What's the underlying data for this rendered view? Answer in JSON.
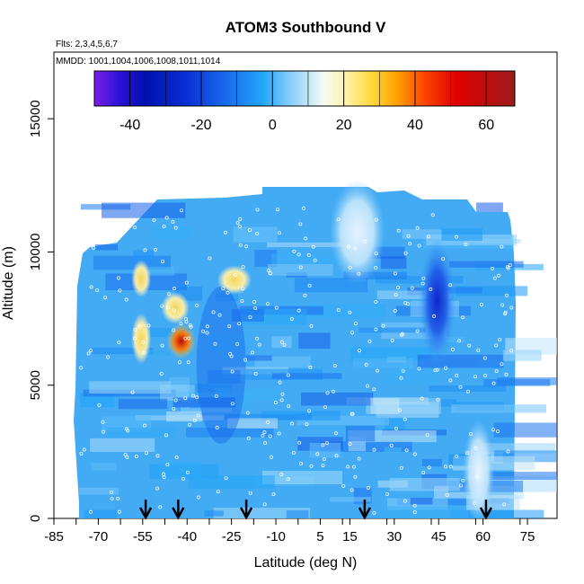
{
  "chart_data": {
    "type": "heatmap",
    "title": "ATOM3 Southbound V",
    "flights_note": "Flts: 2,3,4,5,6,7",
    "dates_note": "MMDD: 1001,1004,1006,1008,1011,1014",
    "xlabel": "Latitude (deg N)",
    "ylabel": "Altitude (m)",
    "xlim": [
      -85,
      85
    ],
    "ylim": [
      0,
      17500
    ],
    "xticks": [
      -85,
      -70,
      -55,
      -40,
      -25,
      -10,
      5,
      15,
      30,
      45,
      60,
      75
    ],
    "xtick_labels": [
      "-85",
      "-70",
      "-55",
      "-40",
      "-25",
      "-10",
      "5",
      "15",
      "30",
      "45",
      "60",
      "75"
    ],
    "yticks": [
      0,
      5000,
      10000,
      15000
    ],
    "ytick_labels": [
      "0",
      "5000",
      "10000",
      "15000"
    ],
    "colorbar": {
      "range": [
        -50,
        68
      ],
      "ticks": [
        -40,
        -20,
        0,
        20,
        40,
        60
      ],
      "tick_labels": [
        "-40",
        "-20",
        "0",
        "20",
        "40",
        "60"
      ]
    },
    "profile_arrows_lat": [
      -54,
      -43,
      -20,
      20,
      61
    ],
    "field_cells": [
      {
        "lat_range": [
          -57,
          -54
        ],
        "alt_range": [
          8500,
          9500
        ],
        "value": 25
      },
      {
        "lat_range": [
          -57,
          -54
        ],
        "alt_range": [
          6000,
          7500
        ],
        "value": 28
      },
      {
        "lat_range": [
          -45,
          -39
        ],
        "alt_range": [
          6200,
          7100
        ],
        "value": 62
      },
      {
        "lat_range": [
          -47,
          -41
        ],
        "alt_range": [
          7500,
          8300
        ],
        "value": 30
      },
      {
        "lat_range": [
          -28,
          -20
        ],
        "alt_range": [
          8600,
          9300
        ],
        "value": 22
      },
      {
        "lat_range": [
          40,
          49
        ],
        "alt_range": [
          6000,
          10300
        ],
        "value": -30
      },
      {
        "lat_range": [
          -35,
          -22
        ],
        "alt_range": [
          3000,
          8500
        ],
        "value": -14
      },
      {
        "lat_range": [
          10,
          25
        ],
        "alt_range": [
          9000,
          12500
        ],
        "value": 6
      },
      {
        "lat_range": [
          55,
          62
        ],
        "alt_range": [
          0,
          3500
        ],
        "value": 14
      }
    ]
  }
}
